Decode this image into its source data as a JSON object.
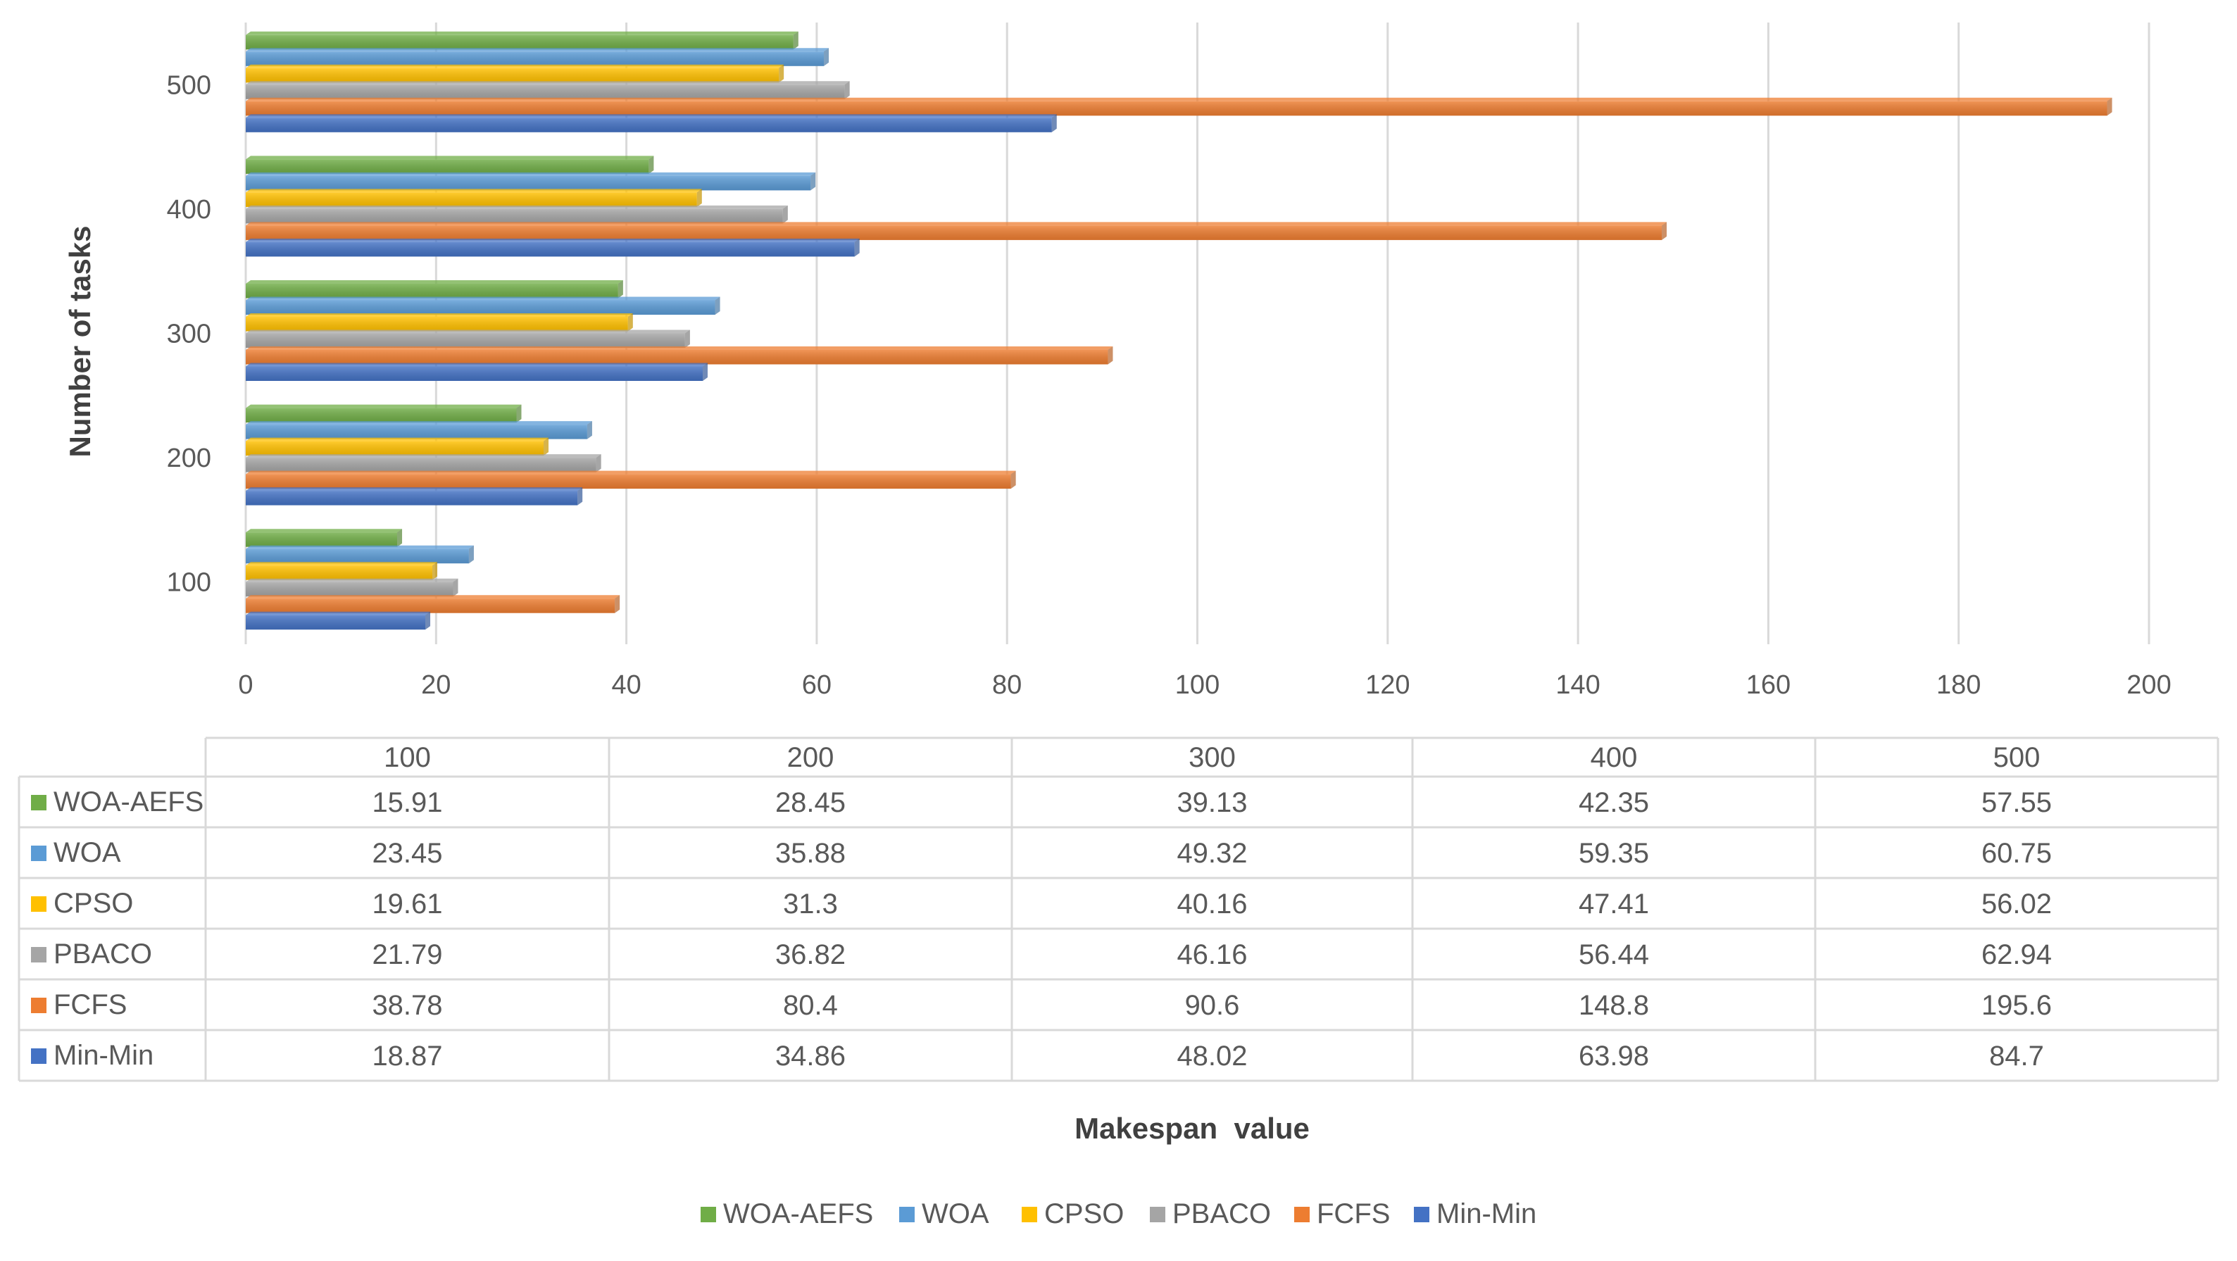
{
  "chart_data": {
    "type": "bar",
    "orientation": "horizontal",
    "categories": [
      "100",
      "200",
      "300",
      "400",
      "500"
    ],
    "series": [
      {
        "name": "WOA-AEFS",
        "color": "#70AD47",
        "values": [
          15.91,
          28.45,
          39.13,
          42.35,
          57.55
        ]
      },
      {
        "name": "WOA",
        "color": "#5B9BD5",
        "values": [
          23.45,
          35.88,
          49.32,
          59.35,
          60.75
        ]
      },
      {
        "name": "CPSO",
        "color": "#FFC000",
        "values": [
          19.61,
          31.3,
          40.16,
          47.41,
          56.02
        ]
      },
      {
        "name": "PBACO",
        "color": "#A5A5A5",
        "values": [
          21.79,
          36.82,
          46.16,
          56.44,
          62.94
        ]
      },
      {
        "name": "FCFS",
        "color": "#ED7D31",
        "values": [
          38.78,
          80.4,
          90.6,
          148.8,
          195.6
        ]
      },
      {
        "name": "Min-Min",
        "color": "#4472C4",
        "values": [
          18.87,
          34.86,
          48.02,
          63.98,
          84.7
        ]
      }
    ],
    "value_labels": [
      [
        "15.91",
        "28.45",
        "39.13",
        "42.35",
        "57.55"
      ],
      [
        "23.45",
        "35.88",
        "49.32",
        "59.35",
        "60.75"
      ],
      [
        "19.61",
        "31.3",
        "40.16",
        "47.41",
        "56.02"
      ],
      [
        "21.79",
        "36.82",
        "46.16",
        "56.44",
        "62.94"
      ],
      [
        "38.78",
        "80.4",
        "90.6",
        "148.8",
        "195.6"
      ],
      [
        "18.87",
        "34.86",
        "48.02",
        "63.98",
        "84.7"
      ]
    ],
    "xlim": [
      0,
      200
    ],
    "xticks": [
      0,
      20,
      40,
      60,
      80,
      100,
      120,
      140,
      160,
      180,
      200
    ],
    "xtick_labels": [
      "0",
      "20",
      "40",
      "60",
      "80",
      "100",
      "120",
      "140",
      "160",
      "180",
      "200"
    ],
    "xlabel": "Makespan  value",
    "ylabel": "Number of tasks",
    "grid": true,
    "legend_position": "bottom",
    "data_table": true
  }
}
